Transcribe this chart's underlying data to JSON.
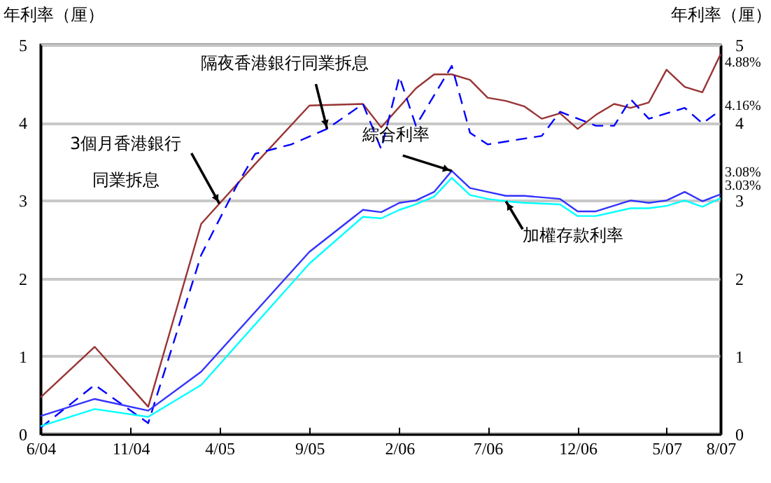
{
  "chart_data": {
    "type": "line",
    "ylabel": "年利率（厘）",
    "y2label": "年利率（厘）",
    "xlim": [
      "2004-06",
      "2007-08"
    ],
    "xticks": [
      {
        "value": "2004-06",
        "label": "6/04"
      },
      {
        "value": "2004-11",
        "label": "11/04"
      },
      {
        "value": "2005-04",
        "label": "4/05"
      },
      {
        "value": "2005-09",
        "label": "9/05"
      },
      {
        "value": "2006-02",
        "label": "2/06"
      },
      {
        "value": "2006-07",
        "label": "7/06"
      },
      {
        "value": "2006-12",
        "label": "12/06"
      },
      {
        "value": "2007-05",
        "label": "5/07"
      },
      {
        "value": "2007-08",
        "label": "8/07"
      }
    ],
    "ylim": [
      0,
      5
    ],
    "yticks": [
      0,
      1,
      2,
      3,
      4,
      5
    ],
    "y2lim": [
      0,
      5
    ],
    "y2ticks": [
      0,
      1,
      2,
      3,
      4,
      5
    ],
    "grid": "y",
    "series": [
      {
        "color": "#993333",
        "line_style": "solid",
        "x": [
          "2004-06",
          "2004-09",
          "2004-12",
          "2005-03",
          "2005-06",
          "2005-09",
          "2005-12",
          "2006-01",
          "2006-03",
          "2006-04",
          "2006-05",
          "2006-06",
          "2006-07",
          "2006-08",
          "2006-09",
          "2006-10",
          "2006-11",
          "2006-12",
          "2007-01",
          "2007-02",
          "2007-03",
          "2007-04",
          "2007-05",
          "2007-06",
          "2007-07",
          "2007-08"
        ],
        "values": [
          0.47,
          1.12,
          0.35,
          2.7,
          3.47,
          4.22,
          4.24,
          3.94,
          4.44,
          4.62,
          4.62,
          4.55,
          4.32,
          4.28,
          4.21,
          4.05,
          4.12,
          3.92,
          4.1,
          4.24,
          4.19,
          4.26,
          4.68,
          4.46,
          4.39,
          4.88
        ]
      },
      {
        "color": "#0000ff",
        "line_style": "dashed",
        "x": [
          "2004-06",
          "2004-09",
          "2004-12",
          "2005-03",
          "2005-05",
          "2005-06",
          "2005-08",
          "2005-10",
          "2005-12",
          "2006-01",
          "2006-02",
          "2006-03",
          "2006-05",
          "2006-06",
          "2006-07",
          "2006-10",
          "2006-11",
          "2007-01",
          "2007-02",
          "2007-03",
          "2007-04",
          "2007-06",
          "2007-07",
          "2007-08"
        ],
        "values": [
          0.08,
          0.63,
          0.14,
          2.3,
          3.2,
          3.6,
          3.72,
          3.92,
          4.24,
          3.66,
          4.59,
          3.96,
          4.73,
          3.87,
          3.72,
          3.83,
          4.14,
          3.96,
          3.96,
          4.3,
          4.05,
          4.19,
          3.99,
          4.16
        ]
      },
      {
        "color": "#3333ff",
        "line_style": "solid",
        "x": [
          "2004-06",
          "2004-09",
          "2004-12",
          "2005-03",
          "2005-09",
          "2005-12",
          "2006-01",
          "2006-02",
          "2006-03",
          "2006-04",
          "2006-05",
          "2006-06",
          "2006-07",
          "2006-08",
          "2006-09",
          "2006-11",
          "2006-12",
          "2007-01",
          "2007-03",
          "2007-04",
          "2007-05",
          "2007-06",
          "2007-07",
          "2007-08"
        ],
        "values": [
          0.23,
          0.45,
          0.3,
          0.8,
          2.34,
          2.88,
          2.85,
          2.97,
          3.0,
          3.11,
          3.38,
          3.16,
          3.11,
          3.06,
          3.06,
          3.02,
          2.86,
          2.86,
          3.0,
          2.97,
          3.0,
          3.11,
          2.99,
          3.08
        ]
      },
      {
        "color": "#00ffff",
        "line_style": "solid",
        "x": [
          "2004-06",
          "2004-09",
          "2004-12",
          "2005-03",
          "2005-09",
          "2005-12",
          "2006-01",
          "2006-02",
          "2006-03",
          "2006-04",
          "2006-05",
          "2006-06",
          "2006-07",
          "2006-08",
          "2006-09",
          "2006-11",
          "2006-12",
          "2007-01",
          "2007-03",
          "2007-04",
          "2007-05",
          "2007-06",
          "2007-07",
          "2007-08"
        ],
        "values": [
          0.1,
          0.32,
          0.22,
          0.63,
          2.19,
          2.79,
          2.77,
          2.88,
          2.95,
          3.05,
          3.29,
          3.07,
          3.02,
          2.99,
          2.97,
          2.95,
          2.8,
          2.8,
          2.9,
          2.9,
          2.93,
          3.0,
          2.92,
          3.03
        ]
      }
    ],
    "annotations": [
      {
        "text": "隔夜香港銀行同業拆息",
        "x": "2005-10",
        "y": 3.92
      },
      {
        "text": "3個月香港銀行",
        "x": "2005-04",
        "y": 2.96
      },
      "同業拆息",
      {
        "text": "綜合利率",
        "x": "2006-05",
        "y": 3.38
      },
      {
        "text": "加權存款利率",
        "x": "2006-08",
        "y": 2.99
      },
      {
        "text": "4.88%",
        "x": "2007-08",
        "y": 4.88
      },
      {
        "text": "4.16%",
        "x": "2007-08",
        "y": 4.16
      },
      {
        "text": "3.08%",
        "x": "2007-08",
        "y": 3.08
      },
      {
        "text": "3.03%",
        "x": "2007-08",
        "y": 3.03
      }
    ]
  }
}
